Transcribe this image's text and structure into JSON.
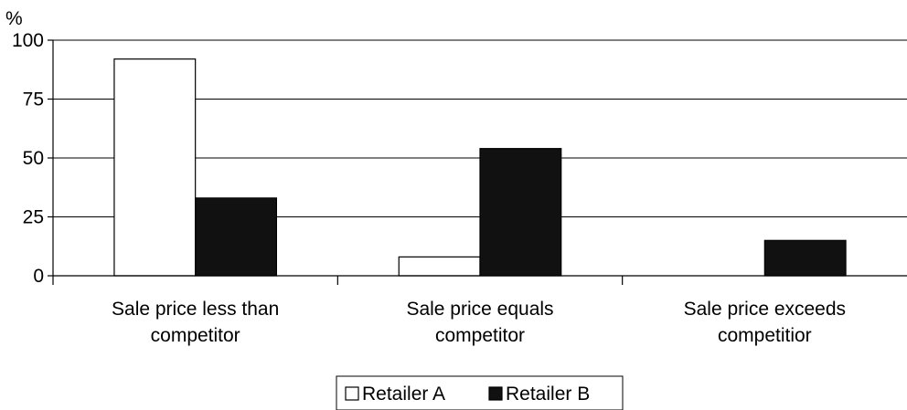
{
  "chart_data": {
    "type": "bar",
    "ylabel": "%",
    "ylim": [
      0,
      100
    ],
    "yticks": [
      0,
      25,
      50,
      75,
      100
    ],
    "grid": true,
    "legend_position": "bottom",
    "categories": [
      [
        "Sale price less than",
        "competitor"
      ],
      [
        "Sale price equals",
        "competitor"
      ],
      [
        "Sale price exceeds",
        "competitior"
      ]
    ],
    "series": [
      {
        "name": "Retailer A",
        "color": "#ffffff",
        "values": [
          92,
          8,
          0
        ]
      },
      {
        "name": "Retailer B",
        "color": "#111111",
        "values": [
          33,
          54,
          15
        ]
      }
    ]
  }
}
